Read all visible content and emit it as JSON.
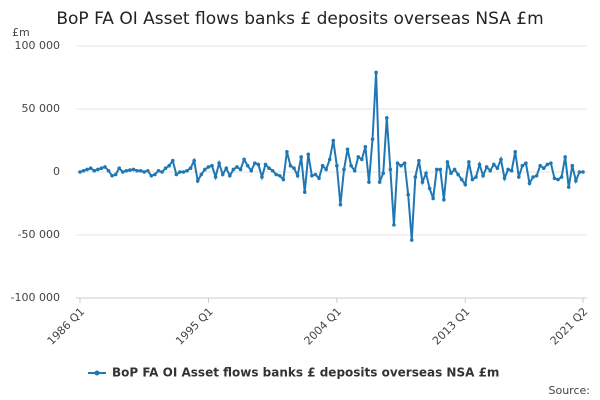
{
  "chart_data": {
    "type": "line",
    "title": "BoP FA OI Asset flows banks £ deposits overseas NSA £m",
    "y_label": "£m",
    "source": "Source:",
    "categories": [
      "1986 Q1",
      null,
      null,
      null,
      null,
      null,
      null,
      null,
      null,
      null,
      null,
      null,
      null,
      null,
      null,
      null,
      null,
      null,
      null,
      null,
      null,
      null,
      null,
      null,
      null,
      null,
      null,
      null,
      null,
      null,
      null,
      null,
      null,
      null,
      null,
      null,
      "1995 Q1",
      null,
      null,
      null,
      null,
      null,
      null,
      null,
      null,
      null,
      null,
      null,
      null,
      null,
      null,
      null,
      null,
      null,
      null,
      null,
      null,
      null,
      null,
      null,
      null,
      null,
      null,
      null,
      null,
      null,
      null,
      null,
      null,
      null,
      null,
      null,
      "2004 Q1",
      null,
      null,
      null,
      null,
      null,
      null,
      null,
      null,
      null,
      null,
      null,
      null,
      null,
      null,
      null,
      null,
      null,
      null,
      null,
      null,
      null,
      null,
      null,
      null,
      null,
      null,
      null,
      null,
      null,
      null,
      null,
      null,
      null,
      null,
      null,
      "2013 Q1",
      null,
      null,
      null,
      null,
      null,
      null,
      null,
      null,
      null,
      null,
      null,
      null,
      null,
      null,
      null,
      null,
      null,
      null,
      null,
      null,
      null,
      null,
      null,
      null,
      null,
      null,
      null,
      null,
      null,
      null,
      null,
      null,
      "2021 Q2"
    ],
    "series": [
      {
        "name": "BoP FA OI Asset flows banks £ deposits overseas NSA £m",
        "color": "#1f78b4",
        "values": [
          0,
          1000,
          2000,
          3000,
          1000,
          2000,
          3000,
          4000,
          1000,
          -3000,
          -2000,
          3000,
          0,
          1000,
          1500,
          2000,
          1000,
          1000,
          0,
          1000,
          -3000,
          -2000,
          1000,
          0,
          3000,
          5000,
          9000,
          -2000,
          0,
          0,
          1000,
          3000,
          9000,
          -7000,
          -2000,
          2000,
          4000,
          5000,
          -4000,
          7000,
          -2000,
          3000,
          -3000,
          2000,
          4000,
          2000,
          10000,
          5000,
          1000,
          7000,
          6000,
          -4000,
          6000,
          3000,
          1000,
          -2000,
          -3000,
          -6000,
          16000,
          5000,
          3000,
          -3000,
          12000,
          -16000,
          14000,
          -3000,
          -2000,
          -5000,
          5000,
          2000,
          10000,
          25000,
          5000,
          -26000,
          2000,
          18000,
          5000,
          1000,
          12000,
          10000,
          20000,
          -8000,
          26000,
          79000,
          -8000,
          -1000,
          43000,
          2000,
          -42000,
          7000,
          5000,
          7000,
          -18000,
          -54000,
          -4000,
          9000,
          -8000,
          -1000,
          -13000,
          -21000,
          2000,
          2000,
          -22000,
          8000,
          -1000,
          2000,
          -2000,
          -6000,
          -10000,
          8000,
          -6000,
          -4000,
          6000,
          -3000,
          4000,
          1000,
          6000,
          3000,
          10000,
          -5000,
          2000,
          1000,
          16000,
          -4000,
          5000,
          7000,
          -9000,
          -4000,
          -3000,
          5000,
          3000,
          6000,
          7000,
          -5000,
          -6000,
          -4000,
          12000,
          -12000,
          5000,
          -7000,
          0,
          0
        ]
      }
    ],
    "ylim": [
      -100000,
      100000
    ],
    "yticks": [
      {
        "value": -100000,
        "label": "-100 000"
      },
      {
        "value": -50000,
        "label": "-50 000"
      },
      0,
      {
        "value": 50000,
        "label": "50 000"
      },
      {
        "value": 100000,
        "label": "100 000"
      }
    ],
    "grid": true
  }
}
